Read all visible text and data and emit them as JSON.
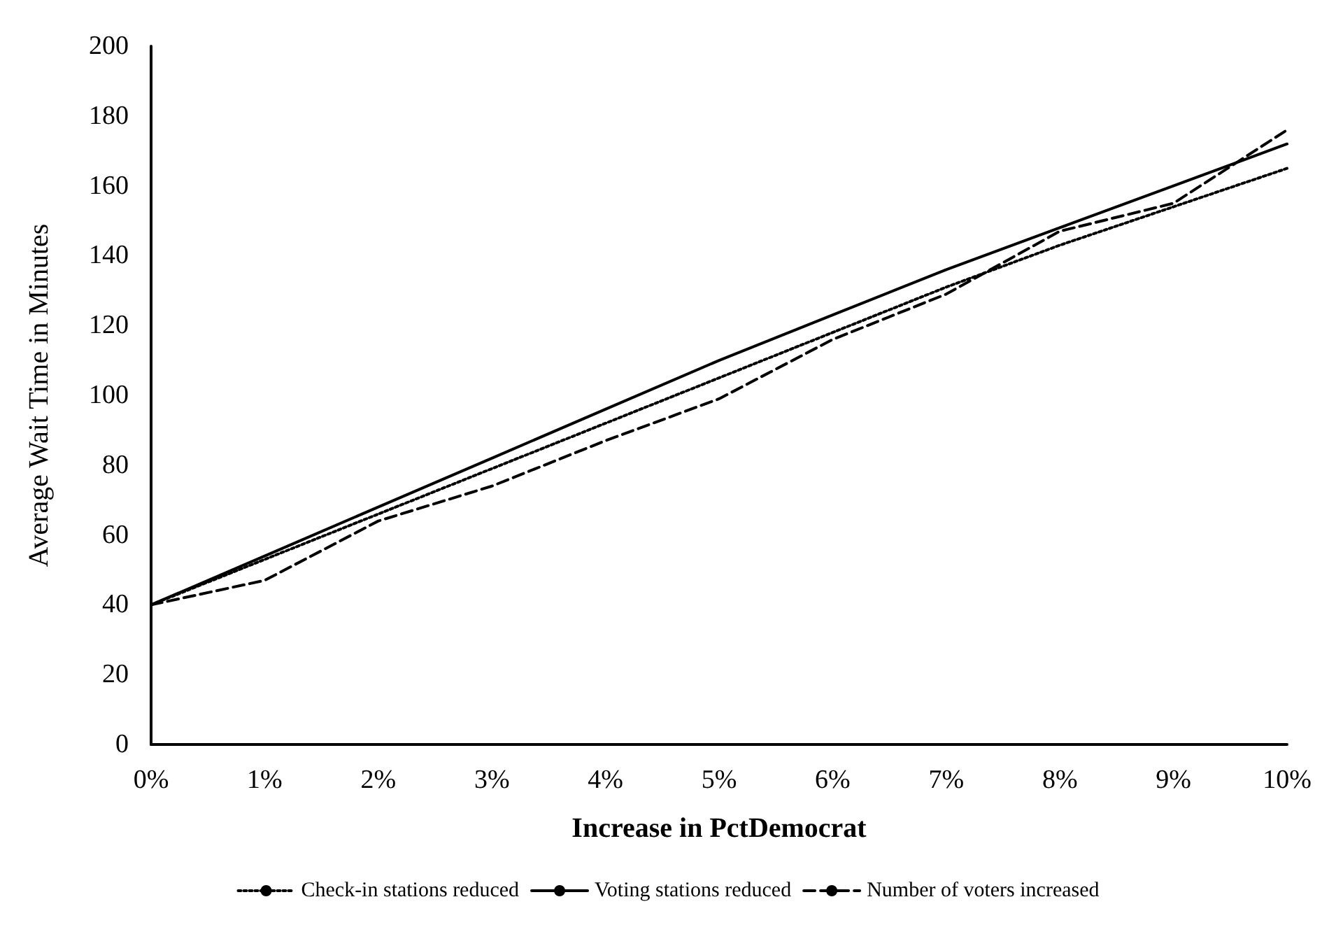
{
  "chart_data": {
    "type": "line",
    "xlabel": "Increase in PctDemocrat",
    "ylabel": "Average Wait Time in Minutes",
    "categories": [
      "0%",
      "1%",
      "2%",
      "3%",
      "4%",
      "5%",
      "6%",
      "7%",
      "8%",
      "9%",
      "10%"
    ],
    "series": [
      {
        "name": "Check-in stations reduced",
        "color": "#000000",
        "line_style": "dotted",
        "values": [
          40,
          53,
          66,
          79,
          92,
          105,
          118,
          131,
          143,
          154,
          165
        ]
      },
      {
        "name": "Voting stations reduced",
        "color": "#000000",
        "line_style": "solid",
        "values": [
          40,
          54,
          68,
          82,
          96,
          110,
          123,
          136,
          148,
          160,
          172
        ]
      },
      {
        "name": "Number of voters increased",
        "color": "#000000",
        "line_style": "dashed",
        "values": [
          40,
          47,
          64,
          74,
          87,
          99,
          116,
          129,
          147,
          155,
          176
        ]
      }
    ],
    "ylim": [
      0,
      200
    ],
    "yticks": [
      0,
      20,
      40,
      60,
      80,
      100,
      120,
      140,
      160,
      180,
      200
    ],
    "grid": false,
    "legend": "bottom",
    "marker": "none"
  }
}
